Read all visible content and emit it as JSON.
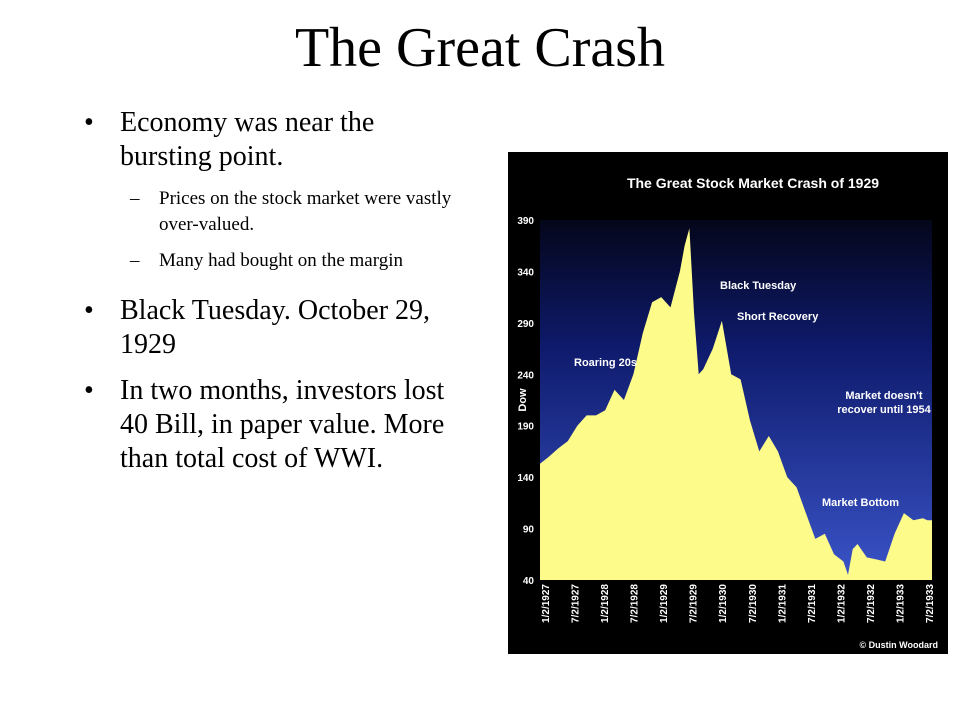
{
  "slide": {
    "title": "The Great Crash",
    "bullets": [
      {
        "text": "Economy was near the bursting point.",
        "subs": [
          "Prices on the stock market were vastly over-valued.",
          "Many had bought on the margin"
        ]
      },
      {
        "text": "Black Tuesday.  October 29, 1929",
        "subs": []
      },
      {
        "text": "In two months,  investors lost 40 Bill, in paper value.  More than total cost of WWI.",
        "subs": []
      }
    ],
    "bullet_symbol": "•",
    "sub_symbol": "–"
  },
  "chart_data": {
    "type": "area",
    "title": "The Great Stock Market Crash of 1929",
    "ylabel": "Dow",
    "xlabel": "",
    "ylim": [
      40,
      390
    ],
    "yticks": [
      390,
      340,
      290,
      240,
      190,
      140,
      90,
      40
    ],
    "xticks": [
      "1/2/1927",
      "7/2/1927",
      "1/2/1928",
      "7/2/1928",
      "1/2/1929",
      "7/2/1929",
      "1/2/1930",
      "7/2/1930",
      "1/2/1931",
      "7/2/1931",
      "1/2/1932",
      "7/2/1932",
      "1/2/1933",
      "7/2/1933"
    ],
    "grid": false,
    "series": [
      {
        "x": [
          "1927-01",
          "1927-03",
          "1927-05",
          "1927-07",
          "1927-09",
          "1927-11",
          "1928-01",
          "1928-03",
          "1928-05",
          "1928-07",
          "1928-09",
          "1928-11",
          "1929-01",
          "1929-03",
          "1929-05",
          "1929-07",
          "1929-08",
          "1929-09",
          "1929-10",
          "1929-11",
          "1929-12",
          "1930-02",
          "1930-04",
          "1930-06",
          "1930-08",
          "1930-10",
          "1930-12",
          "1931-02",
          "1931-04",
          "1931-06",
          "1931-08",
          "1931-10",
          "1931-12",
          "1932-02",
          "1932-04",
          "1932-06",
          "1932-07",
          "1932-08",
          "1932-09",
          "1932-11",
          "1933-01",
          "1933-03",
          "1933-05",
          "1933-07",
          "1933-09",
          "1933-11",
          "1933-12"
        ],
        "values": [
          153,
          160,
          168,
          175,
          190,
          200,
          200,
          205,
          225,
          215,
          240,
          280,
          310,
          315,
          305,
          340,
          365,
          382,
          300,
          240,
          245,
          265,
          292,
          240,
          235,
          195,
          165,
          180,
          165,
          140,
          130,
          105,
          80,
          85,
          65,
          58,
          45,
          70,
          75,
          62,
          60,
          58,
          85,
          105,
          98,
          100,
          98
        ]
      }
    ],
    "annotations": [
      {
        "text": "Roaring 20s"
      },
      {
        "text": "Black Tuesday"
      },
      {
        "text": "Short Recovery"
      },
      {
        "text": "Market doesn't recover until 1954"
      },
      {
        "text": "Market Bottom"
      }
    ],
    "credit": "© Dustin Woodard",
    "colors": {
      "background_top": "#04061a",
      "background_mid": "#0e1a6b",
      "background_bottom": "#3a54c8",
      "fill": "#fdfc8a",
      "text": "#ffffff"
    }
  }
}
